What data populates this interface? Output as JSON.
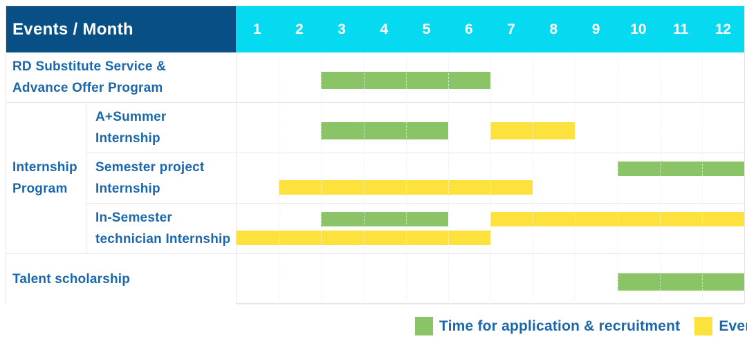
{
  "header": {
    "title": "Events / Month",
    "months": [
      "1",
      "2",
      "3",
      "4",
      "5",
      "6",
      "7",
      "8",
      "9",
      "10",
      "11",
      "12"
    ]
  },
  "colors": {
    "header_navy": "#084f86",
    "header_cyan": "#06daf0",
    "label_text_blue": "#1a67ab",
    "grid_gray": "#e7e7e7"
  },
  "series_colors": {
    "application": "#8ac466",
    "events": "#fde23e"
  },
  "legend": [
    {
      "series": "application",
      "label": "Time for application & recruitment",
      "color": "#8ac466"
    },
    {
      "series": "events",
      "label": "Events",
      "color": "#fde23e"
    }
  ],
  "chart_data": {
    "type": "gantt",
    "title": "Events / Month",
    "x_axis": {
      "label": "Month",
      "ticks": [
        1,
        2,
        3,
        4,
        5,
        6,
        7,
        8,
        9,
        10,
        11,
        12
      ]
    },
    "legend_entries": [
      "Time for application & recruitment",
      "Events"
    ],
    "rows": [
      {
        "group": null,
        "label": "RD Substitute Service & Advance Offer Program",
        "label_lines": [
          "RD Substitute Service &",
          "Advance Offer Program"
        ],
        "lines": 1,
        "bars": [
          {
            "series": "application",
            "start_month": 3,
            "end_month": 6,
            "line": 0
          }
        ]
      },
      {
        "group": "Internship Program",
        "label": "A+Summer Internship",
        "label_lines": [
          "A+Summer",
          "Internship"
        ],
        "lines": 1,
        "bars": [
          {
            "series": "application",
            "start_month": 3,
            "end_month": 5,
            "line": 0
          },
          {
            "series": "events",
            "start_month": 7,
            "end_month": 8,
            "line": 0
          }
        ]
      },
      {
        "group": "Internship Program",
        "label": "Semester project Internship",
        "label_lines": [
          "Semester project",
          "Internship"
        ],
        "lines": 2,
        "bars": [
          {
            "series": "application",
            "start_month": 10,
            "end_month": 12,
            "line": 0
          },
          {
            "series": "events",
            "start_month": 2,
            "end_month": 7,
            "line": 1
          }
        ]
      },
      {
        "group": "Internship Program",
        "label": "In-Semester technician Internship",
        "label_lines": [
          "In-Semester",
          "technician Internship"
        ],
        "lines": 2,
        "bars": [
          {
            "series": "application",
            "start_month": 3,
            "end_month": 5,
            "line": 0
          },
          {
            "series": "events",
            "start_month": 7,
            "end_month": 12,
            "line": 0
          },
          {
            "series": "events",
            "start_month": 1,
            "end_month": 6,
            "line": 1
          }
        ]
      },
      {
        "group": null,
        "label": "Talent scholarship",
        "label_lines": [
          "Talent scholarship"
        ],
        "lines": 1,
        "bars": [
          {
            "series": "application",
            "start_month": 10,
            "end_month": 12,
            "line": 0
          }
        ]
      }
    ],
    "group_label_lines": [
      "Internship",
      "Program"
    ]
  }
}
